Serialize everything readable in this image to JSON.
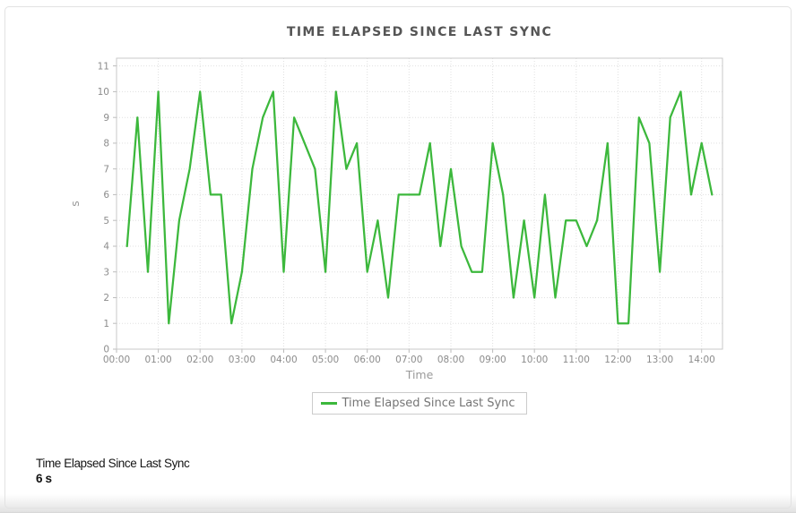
{
  "chart_data": {
    "type": "line",
    "title": "TIME ELAPSED SINCE LAST SYNC",
    "xlabel": "Time",
    "ylabel": "s",
    "legend": [
      "Time Elapsed Since Last Sync"
    ],
    "legend_position": "bottom",
    "grid": true,
    "line_color": "#3cb83c",
    "x_tick_labels": [
      "00:00",
      "01:00",
      "02:00",
      "03:00",
      "04:00",
      "05:00",
      "06:00",
      "07:00",
      "08:00",
      "09:00",
      "10:00",
      "11:00",
      "12:00",
      "13:00",
      "14:00"
    ],
    "y_ticks": [
      0,
      1,
      2,
      3,
      4,
      5,
      6,
      7,
      8,
      9,
      10,
      11
    ],
    "xlim_minutes": [
      0,
      870
    ],
    "ylim": [
      0,
      11.3
    ],
    "x": [
      "00:15",
      "00:30",
      "00:45",
      "01:00",
      "01:15",
      "01:30",
      "01:45",
      "02:00",
      "02:15",
      "02:30",
      "02:45",
      "03:00",
      "03:15",
      "03:30",
      "03:45",
      "04:00",
      "04:15",
      "04:30",
      "04:45",
      "05:00",
      "05:15",
      "05:30",
      "05:45",
      "06:00",
      "06:15",
      "06:30",
      "06:45",
      "07:00",
      "07:15",
      "07:30",
      "07:45",
      "08:00",
      "08:15",
      "08:30",
      "08:45",
      "09:00",
      "09:15",
      "09:30",
      "09:45",
      "10:00",
      "10:15",
      "10:30",
      "10:45",
      "11:00",
      "11:15",
      "11:30",
      "11:45",
      "12:00",
      "12:15",
      "12:30",
      "12:45",
      "13:00",
      "13:15",
      "13:30",
      "13:45",
      "14:00",
      "14:15"
    ],
    "values": [
      4,
      9,
      3,
      10,
      1,
      5,
      7,
      10,
      6,
      6,
      1,
      3,
      7,
      9,
      10,
      3,
      9,
      8,
      7,
      3,
      10,
      7,
      8,
      3,
      5,
      2,
      6,
      6,
      6,
      8,
      4,
      7,
      4,
      3,
      3,
      8,
      6,
      2,
      5,
      2,
      6,
      2,
      5,
      5,
      4,
      5,
      8,
      1,
      1,
      9,
      8,
      3,
      9,
      10,
      6,
      8,
      6
    ]
  },
  "footer": {
    "label": "Time Elapsed Since Last Sync",
    "value": "6 s"
  }
}
